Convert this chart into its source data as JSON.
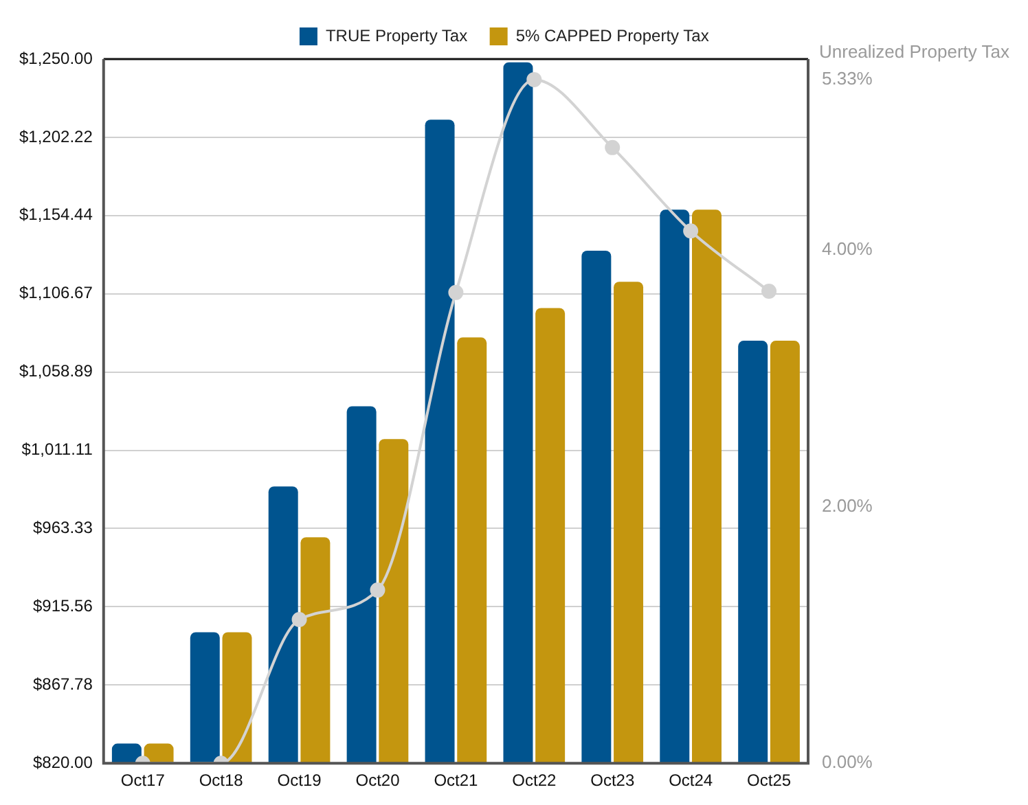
{
  "chart_data": {
    "type": "bar",
    "categories": [
      "Oct17",
      "Oct18",
      "Oct19",
      "Oct20",
      "Oct21",
      "Oct22",
      "Oct23",
      "Oct24",
      "Oct25"
    ],
    "series": [
      {
        "name": "TRUE Property Tax",
        "color": "#00548f",
        "values": [
          832,
          900,
          989,
          1038,
          1213,
          1248,
          1133,
          1158,
          1078
        ]
      },
      {
        "name": "5% CAPPED Property Tax",
        "color": "#c4960f",
        "values": [
          832,
          900,
          958,
          1018,
          1080,
          1098,
          1114,
          1158,
          1078
        ]
      },
      {
        "type": "line",
        "axis": "y2",
        "color": "#d3d3d3",
        "values": [
          0,
          0,
          1.12,
          1.35,
          3.67,
          5.33,
          4.8,
          4.15,
          3.68
        ]
      }
    ],
    "y2label": "Unrealized Property Tax",
    "ylim": [
      820,
      1250
    ],
    "yticks": [
      {
        "value": 820,
        "label": "$820.00"
      },
      {
        "value": 867.78,
        "label": "$867.78"
      },
      {
        "value": 915.56,
        "label": "$915.56"
      },
      {
        "value": 963.33,
        "label": "$963.33"
      },
      {
        "value": 1011.11,
        "label": "$1,011.11"
      },
      {
        "value": 1058.89,
        "label": "$1,058.89"
      },
      {
        "value": 1106.67,
        "label": "$1,106.67"
      },
      {
        "value": 1154.44,
        "label": "$1,154.44"
      },
      {
        "value": 1202.22,
        "label": "$1,202.22"
      },
      {
        "value": 1250,
        "label": "$1,250.00"
      }
    ],
    "y2lim": [
      0,
      5.49
    ],
    "y2ticks": [
      {
        "value": 0,
        "label": "0.00%"
      },
      {
        "value": 2,
        "label": "2.00%"
      },
      {
        "value": 4,
        "label": "4.00%"
      },
      {
        "value": 5.33,
        "label": "5.33%"
      }
    ],
    "grid": "y",
    "legend": "top",
    "marker": "circle",
    "line_style": "solid"
  }
}
